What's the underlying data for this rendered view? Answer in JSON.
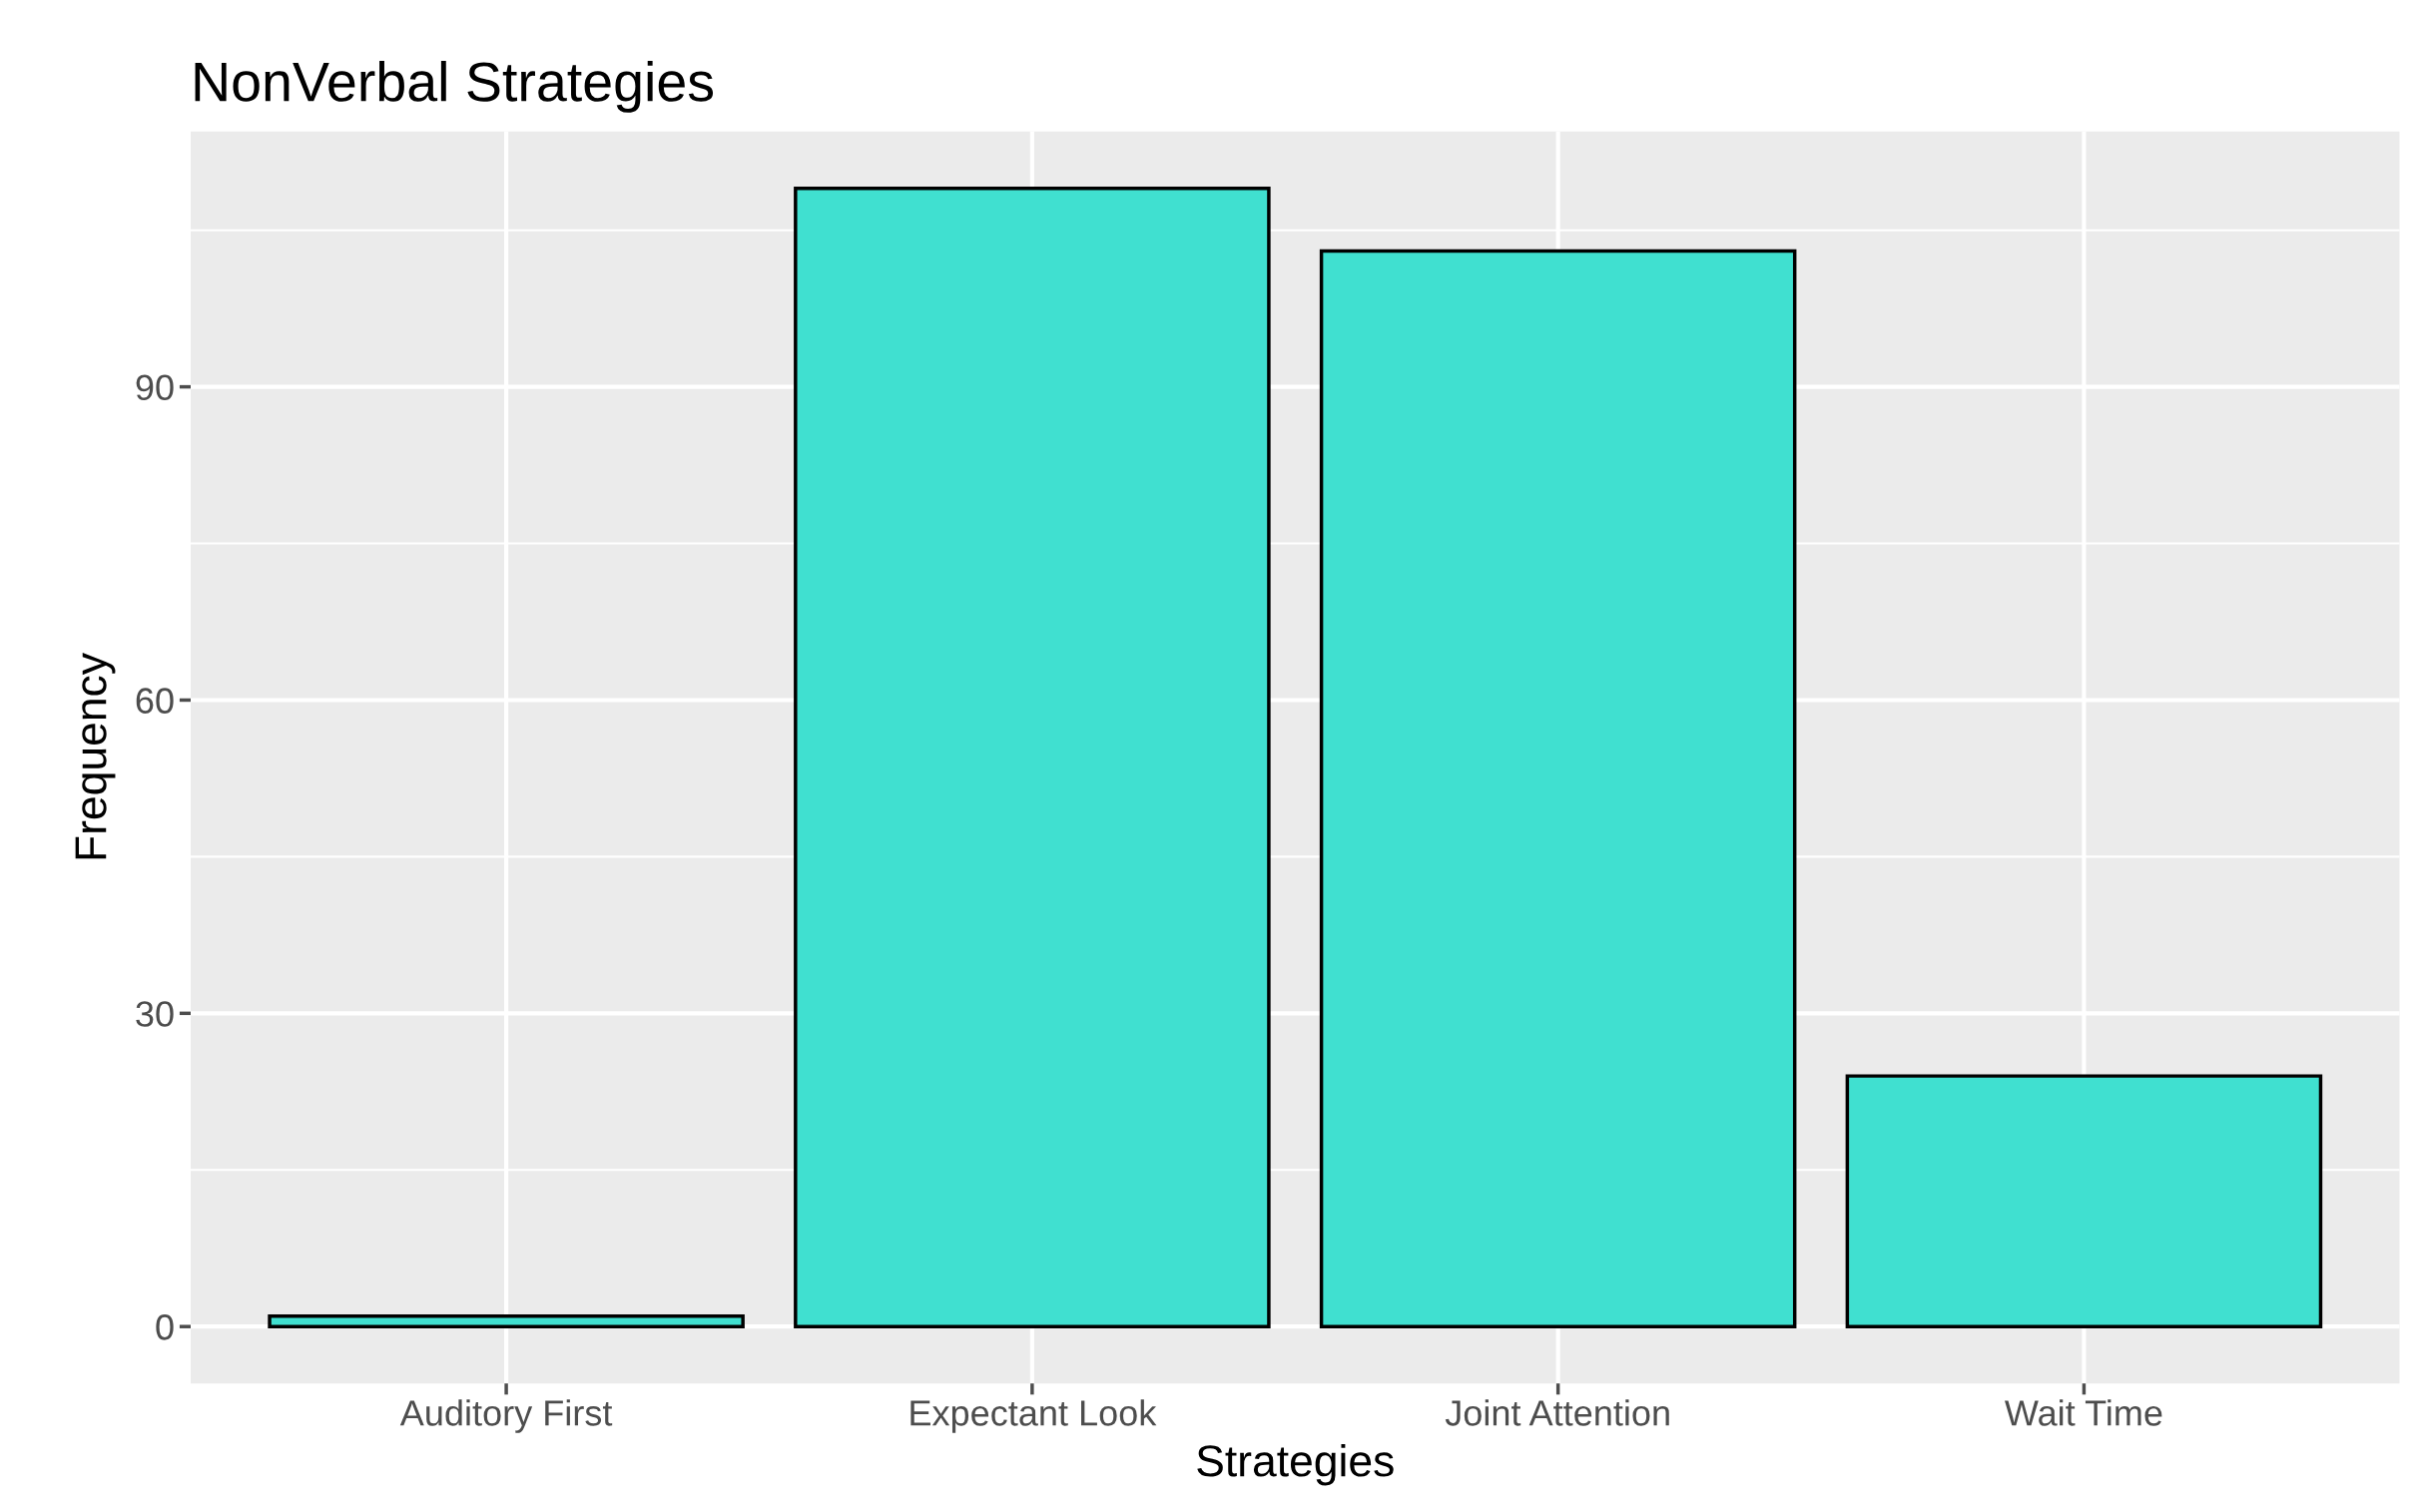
{
  "chart_data": {
    "type": "bar",
    "title": "NonVerbal Strategies",
    "xlabel": "Strategies",
    "ylabel": "Frequency",
    "categories": [
      "Auditory First",
      "Expectant Look",
      "Joint Attention",
      "Wait Time"
    ],
    "values": [
      1,
      109,
      103,
      24
    ],
    "color": "#40e0d0",
    "ylim": [
      -5.45,
      114.45
    ],
    "yticks": [
      0,
      30,
      60,
      90
    ],
    "grid": true
  }
}
